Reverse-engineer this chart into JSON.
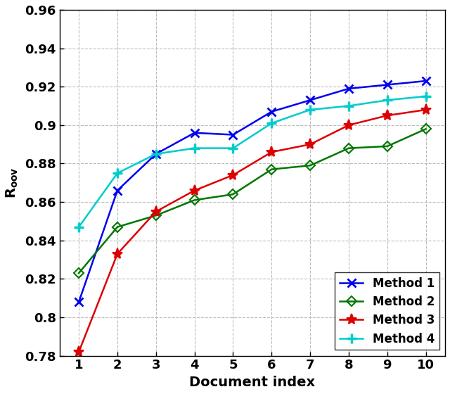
{
  "x": [
    1,
    2,
    3,
    4,
    5,
    6,
    7,
    8,
    9,
    10
  ],
  "method1": [
    0.808,
    0.866,
    0.885,
    0.896,
    0.895,
    0.907,
    0.913,
    0.919,
    0.921,
    0.923
  ],
  "method2": [
    0.823,
    0.847,
    0.853,
    0.861,
    0.864,
    0.877,
    0.879,
    0.888,
    0.889,
    0.898
  ],
  "method3": [
    0.782,
    0.833,
    0.855,
    0.866,
    0.874,
    0.886,
    0.89,
    0.9,
    0.905,
    0.908
  ],
  "method4": [
    0.847,
    0.875,
    0.885,
    0.888,
    0.888,
    0.901,
    0.908,
    0.91,
    0.913,
    0.915
  ],
  "colors": [
    "#0000EE",
    "#007700",
    "#DD0000",
    "#00CCCC"
  ],
  "markers": [
    "x",
    "D",
    "*",
    "+"
  ],
  "markersizes": [
    9,
    7,
    11,
    10
  ],
  "markeredgewidths": [
    2.0,
    1.5,
    1.5,
    2.5
  ],
  "labels": [
    "Method 1",
    "Method 2",
    "Method 3",
    "Method 4"
  ],
  "xlabel": "Document index",
  "ylabel": "R_{oov}",
  "ylim": [
    0.78,
    0.96
  ],
  "ytick_labels": [
    "0.78",
    "0.8",
    "0.82",
    "0.84",
    "0.86",
    "0.88",
    "0.9",
    "0.92",
    "0.94",
    "0.96"
  ],
  "ytick_values": [
    0.78,
    0.8,
    0.82,
    0.84,
    0.86,
    0.88,
    0.9,
    0.92,
    0.94,
    0.96
  ],
  "xticks": [
    1,
    2,
    3,
    4,
    5,
    6,
    7,
    8,
    9,
    10
  ],
  "background_color": "#ffffff",
  "grid_color": "#bbbbbb",
  "linewidth": 1.8,
  "legend_loc": "lower right",
  "figsize": [
    6.4,
    5.6
  ],
  "dpi": 100
}
